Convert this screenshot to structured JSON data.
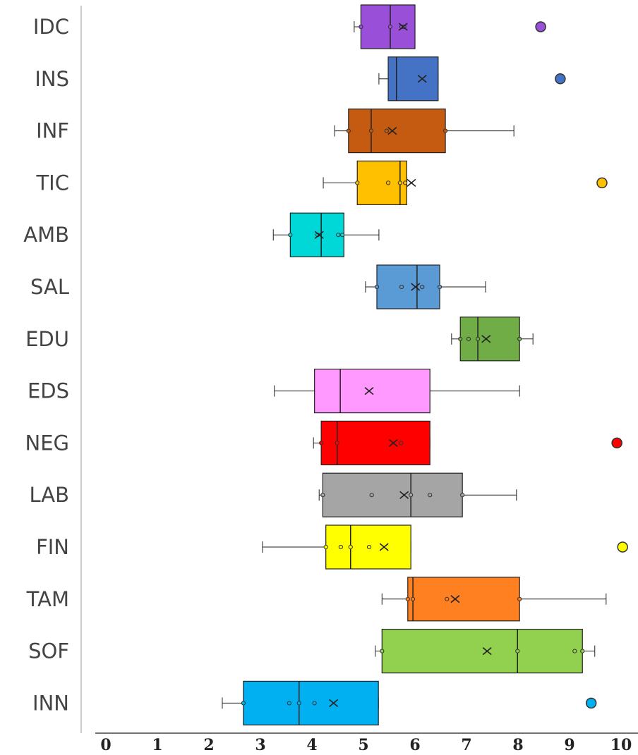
{
  "chart_data": {
    "type": "boxplot",
    "categories": [
      "IDC",
      "INS",
      "INF",
      "TIC",
      "AMB",
      "SAL",
      "EDU",
      "EDS",
      "NEG",
      "LAB",
      "FIN",
      "TAM",
      "SOF",
      "INN"
    ],
    "colors": [
      "#9a4fd8",
      "#4472c4",
      "#c55a11",
      "#ffc000",
      "#00d8d8",
      "#5b9bd5",
      "#70ad47",
      "#ff99ff",
      "#ff0000",
      "#a5a5a5",
      "#ffff00",
      "#ff8021",
      "#92d050",
      "#00b0f0"
    ],
    "boxes": [
      {
        "min": 4.82,
        "q1": 4.95,
        "median": 5.52,
        "q3": 6.0,
        "max": 6.0,
        "mean": 5.77,
        "points": [
          4.95,
          5.52,
          5.74,
          5.79
        ],
        "outliers": [
          8.44
        ]
      },
      {
        "min": 5.3,
        "q1": 5.48,
        "median": 5.64,
        "q3": 6.45,
        "max": 6.45,
        "mean": 6.14,
        "outliers": [
          8.82
        ]
      },
      {
        "min": 4.44,
        "q1": 4.71,
        "median": 5.15,
        "q3": 6.59,
        "max": 7.92,
        "mean": 5.56,
        "points": [
          4.71,
          5.15,
          5.45,
          6.59
        ]
      },
      {
        "min": 4.22,
        "q1": 4.88,
        "median": 5.71,
        "q3": 5.84,
        "max": 5.84,
        "mean": 5.93,
        "points": [
          4.88,
          5.48,
          5.71,
          5.81
        ],
        "outliers": [
          9.63
        ]
      },
      {
        "min": 3.25,
        "q1": 3.58,
        "median": 4.18,
        "q3": 4.62,
        "max": 5.3,
        "mean": 4.14,
        "points": [
          3.58,
          4.11,
          4.51,
          4.59
        ]
      },
      {
        "min": 5.04,
        "q1": 5.26,
        "median": 6.04,
        "q3": 6.48,
        "max": 7.37,
        "mean": 6.01,
        "points": [
          5.26,
          5.74,
          6.14,
          6.48
        ]
      },
      {
        "min": 6.71,
        "q1": 6.88,
        "median": 7.22,
        "q3": 8.03,
        "max": 8.29,
        "mean": 7.38,
        "points": [
          6.88,
          7.04,
          7.22,
          8.03
        ]
      },
      {
        "min": 3.27,
        "q1": 4.05,
        "median": 4.55,
        "q3": 6.29,
        "max": 8.03,
        "mean": 5.11
      },
      {
        "min": 4.03,
        "q1": 4.18,
        "median": 4.49,
        "q3": 6.29,
        "max": 6.29,
        "mean": 5.58,
        "points": [
          4.18,
          4.49,
          5.73
        ],
        "outliers": [
          9.92
        ]
      },
      {
        "min": 4.14,
        "q1": 4.21,
        "median": 5.92,
        "q3": 6.92,
        "max": 7.97,
        "mean": 5.79,
        "points": [
          4.21,
          5.16,
          5.92,
          6.29,
          6.92
        ]
      },
      {
        "min": 3.04,
        "q1": 4.27,
        "median": 4.75,
        "q3": 5.92,
        "max": 5.92,
        "mean": 5.4,
        "points": [
          4.27,
          4.56,
          4.75,
          5.11
        ],
        "outliers": [
          10.03
        ]
      },
      {
        "min": 5.36,
        "q1": 5.86,
        "median": 5.96,
        "q3": 8.03,
        "max": 9.71,
        "mean": 6.78,
        "points": [
          5.86,
          5.96,
          6.62,
          8.03
        ]
      },
      {
        "min": 5.23,
        "q1": 5.36,
        "median": 7.99,
        "q3": 9.25,
        "max": 9.49,
        "mean": 7.4,
        "points": [
          5.36,
          7.99,
          9.1,
          9.25
        ]
      },
      {
        "min": 2.26,
        "q1": 2.67,
        "median": 3.75,
        "q3": 5.29,
        "max": 5.29,
        "mean": 4.42,
        "points": [
          2.67,
          3.56,
          3.75,
          4.05
        ],
        "outliers": [
          9.42
        ]
      }
    ],
    "xlim": [
      0,
      10
    ],
    "xticks": [
      0,
      1,
      2,
      3,
      4,
      5,
      6,
      7,
      8,
      9,
      10
    ]
  }
}
